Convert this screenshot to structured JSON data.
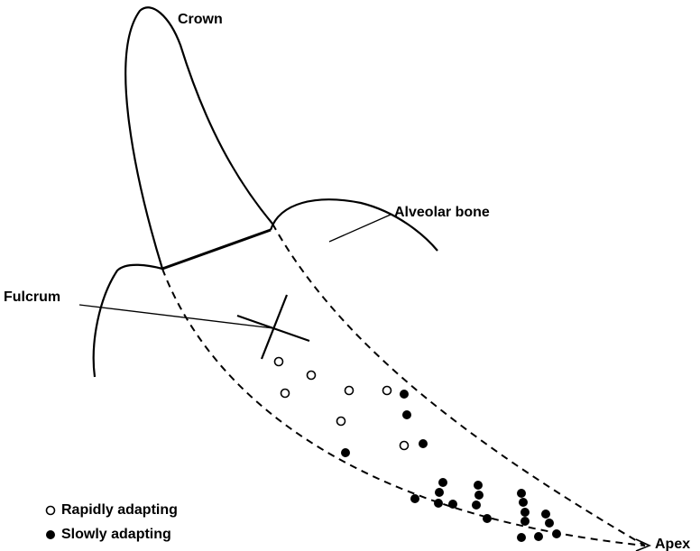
{
  "labels": {
    "crown": "Crown",
    "alveolar_bone": "Alveolar bone",
    "fulcrum": "Fulcrum",
    "apex": "Apex"
  },
  "legend": {
    "rapid": "Rapidly adapting",
    "slow": "Slowly adapting"
  }
}
